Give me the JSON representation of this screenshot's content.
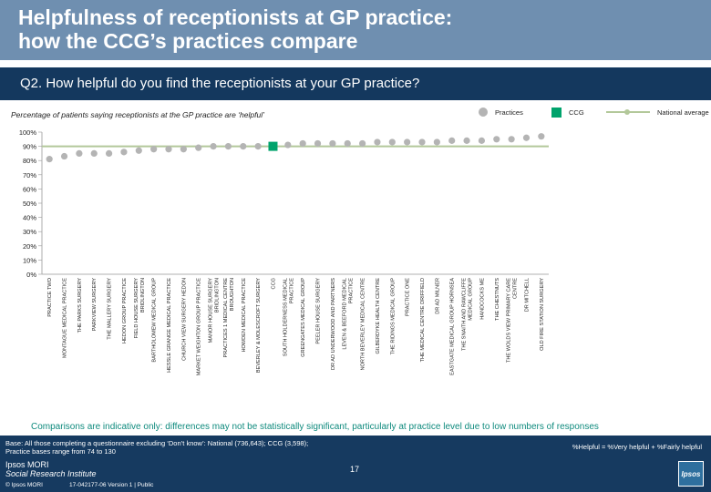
{
  "header": {
    "title_line1": "Helpfulness of receptionists at GP practice:",
    "title_line2": "how the CCG’s practices compare"
  },
  "question": "Q2. How helpful do you find the receptionists at your GP practice?",
  "subtitle": "Percentage of patients saying receptionists at the GP practice are ‘helpful’",
  "legend": {
    "practices": "Practices",
    "ccg": "CCG",
    "national": "National average"
  },
  "colors": {
    "practice_dot": "#b4b4b4",
    "ccg_marker": "#00a36c",
    "national_line": "#b3c89a",
    "header_bg": "#6f8fb0",
    "question_bg": "#14385e",
    "footer_bg": "#163a60",
    "note_text": "#0e8a7d"
  },
  "note": "Comparisons are indicative only: differences may not be statistically significant, particularly at practice level due to low numbers of responses",
  "footer": {
    "base_line1": "Base: All those completing a questionnaire excluding ‘Don’t know’: National (736,643); CCG (3,598);",
    "base_line2": "Practice bases range from 74 to 130",
    "helpful_definition": "%Helpful = %Very helpful + %Fairly helpful",
    "page_number": "17",
    "logo_line1": "Ipsos MORI",
    "logo_line2": "Social Research Institute",
    "copyright": "© Ipsos MORI",
    "job_ref": "17-042177-06 Version 1 | Public",
    "brand_logo": "Ipsos"
  },
  "chart_data": {
    "type": "scatter",
    "title": "Percentage of patients saying receptionists at the GP practice are ‘helpful’",
    "ylim": [
      0,
      100
    ],
    "yticks": [
      0,
      10,
      20,
      30,
      40,
      50,
      60,
      70,
      80,
      90,
      100
    ],
    "ytick_labels": [
      "0%",
      "10%",
      "20%",
      "30%",
      "40%",
      "50%",
      "60%",
      "70%",
      "80%",
      "90%",
      "100%"
    ],
    "national_average": 90,
    "categories": [
      "PRACTICE TWO",
      "MONTAGUE MEDICAL PRACTICE",
      "THE PARKS SURGERY",
      "PARKVIEW SURGERY",
      "THE MALLERY SURGERY",
      "HEDON GROUP PRACTICE",
      "FIELD HOUSE SURGERY BRIDLINGTON",
      "BARTHOLOMEW MEDICAL GROUP",
      "HESSLE GRANGE MEDICAL PRACTICE",
      "CHURCH VIEW SURGERY HEDON",
      "MARKET WEIGHTON GROUP PRACTICE",
      "MANOR HOUSE SURGERY BRIDLINGTON",
      "PRACTICES 1 MEDICAL CENTRE BROUGHTON",
      "HOWDEN MEDICAL PRACTICE",
      "BEVERLEY & MOLESCROFT SURGERY",
      "CCG",
      "SOUTH HOLDERNESS MEDICAL PRACTICE",
      "GREENGATES MEDICAL GROUP",
      "PEELER HOUSE SURGERY",
      "DR AD UNDERWOOD AND PARTNERS",
      "LEVEN & BEEFORD MEDICAL PRACTICE",
      "NORTH BEVERLEY MEDICAL CENTRE",
      "GILBERDYKE HEALTH CENTRE",
      "THE RIDINGS MEDICAL GROUP",
      "PRACTICE ONE",
      "THE MEDICAL CENTRE DRIFFIELD",
      "DR AD MILNER",
      "EASTGATE MEDICAL GROUP HORNSEA",
      "THE SNAITH AND RAWCLIFFE MEDICAL GROUP",
      "HANDCOCKS ME",
      "THE CHESTNUTS",
      "THE WOLDS VIEW PRIMARY CARE CENTRE",
      "DR MITCHELL",
      "OLD FIRE STATION SURGERY"
    ],
    "series": [
      {
        "name": "Practices",
        "values": [
          81,
          83,
          85,
          85,
          85,
          86,
          87,
          88,
          88,
          88,
          89,
          90,
          90,
          90,
          90,
          null,
          91,
          92,
          92,
          92,
          92,
          92,
          93,
          93,
          93,
          93,
          93,
          94,
          94,
          94,
          95,
          95,
          96,
          97
        ]
      },
      {
        "name": "CCG",
        "values": [
          null,
          null,
          null,
          null,
          null,
          null,
          null,
          null,
          null,
          null,
          null,
          null,
          null,
          null,
          null,
          90,
          null,
          null,
          null,
          null,
          null,
          null,
          null,
          null,
          null,
          null,
          null,
          null,
          null,
          null,
          null,
          null,
          null,
          null
        ]
      }
    ]
  }
}
